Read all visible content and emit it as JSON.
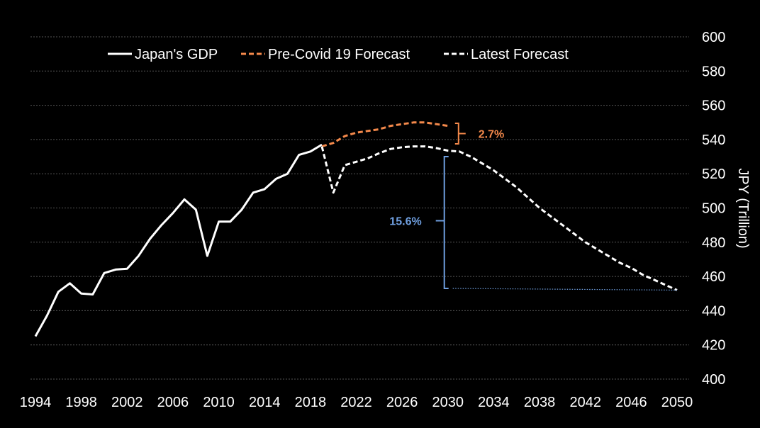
{
  "chart_data": {
    "type": "line",
    "title": "",
    "xlabel": "",
    "ylabel": "JPY (Trillion)",
    "xlim": [
      1994,
      2050
    ],
    "ylim": [
      400,
      600
    ],
    "yticks": [
      400,
      420,
      440,
      460,
      480,
      500,
      520,
      540,
      560,
      580,
      600
    ],
    "xticks": [
      1994,
      1998,
      2002,
      2006,
      2010,
      2014,
      2018,
      2022,
      2026,
      2030,
      2034,
      2038,
      2042,
      2046,
      2050
    ],
    "grid": "horizontal dashed",
    "legend_position": "top",
    "colors": {
      "background": "#000000",
      "gdp": "#ffffff",
      "pre_covid": "#f4894b",
      "latest": "#ffffff",
      "bracket_gap": "#6f9fe0",
      "grid": "#555555"
    },
    "series": [
      {
        "name": "Japan's GDP",
        "style": "solid",
        "x": [
          1994,
          1995,
          1996,
          1997,
          1998,
          1999,
          2000,
          2001,
          2002,
          2003,
          2004,
          2005,
          2006,
          2007,
          2008,
          2009,
          2010,
          2011,
          2012,
          2013,
          2014,
          2015,
          2016,
          2017,
          2018,
          2019
        ],
        "y": [
          425,
          437,
          451,
          456,
          450,
          449.5,
          462,
          464,
          464.5,
          472,
          482,
          490,
          497,
          505,
          499,
          472,
          492,
          492,
          499,
          509,
          511,
          517,
          520,
          531,
          533,
          537
        ]
      },
      {
        "name": "Pre-Covid 19 Forecast",
        "style": "dashed",
        "x": [
          2019,
          2020,
          2021,
          2022,
          2023,
          2024,
          2025,
          2026,
          2027,
          2028,
          2029,
          2030
        ],
        "y": [
          536,
          538,
          542,
          544,
          545,
          546,
          548,
          549,
          550,
          550,
          549,
          548
        ]
      },
      {
        "name": "Latest Forecast",
        "style": "dashed",
        "x": [
          2019,
          2020,
          2021,
          2022,
          2023,
          2024,
          2025,
          2026,
          2027,
          2028,
          2029,
          2030,
          2031,
          2032,
          2033,
          2034,
          2035,
          2036,
          2037,
          2038,
          2039,
          2040,
          2041,
          2042,
          2043,
          2044,
          2045,
          2046,
          2047,
          2048,
          2049,
          2050
        ],
        "y": [
          536,
          509,
          525,
          527,
          529,
          532,
          534.5,
          535.5,
          536,
          536,
          535,
          533.5,
          533,
          530,
          526,
          522,
          517,
          512,
          506,
          500,
          495,
          490,
          485,
          480,
          476,
          472,
          468,
          465,
          461,
          458,
          455,
          452
        ]
      }
    ],
    "annotations": [
      {
        "text": "2.7%",
        "color": "#f4894b",
        "x_year": 2030,
        "y_from": 537.5,
        "y_to": 549.5
      },
      {
        "text": "15.6%",
        "color": "#6f9fe0",
        "x_year": 2029.5,
        "y_from": 453,
        "y_to": 530
      }
    ]
  }
}
